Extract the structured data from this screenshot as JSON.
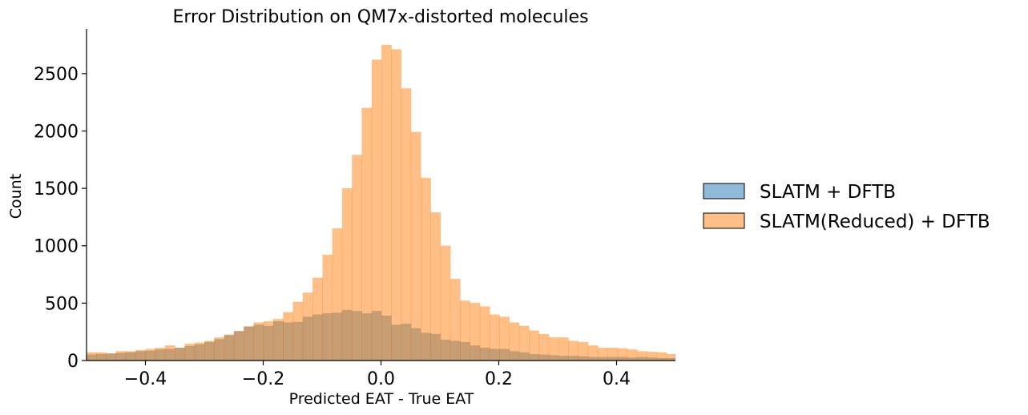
{
  "chart_data": {
    "type": "bar",
    "title": "Error Distribution on QM7x-distorted molecules",
    "xlabel": "Predicted EAT - True EAT",
    "ylabel": "Count",
    "xlim": [
      -0.5,
      0.5
    ],
    "ylim": [
      0,
      2890
    ],
    "xticks": [
      -0.4,
      -0.2,
      0.0,
      0.2,
      0.4
    ],
    "xtick_labels": [
      "−0.4",
      "−0.2",
      "0.0",
      "0.2",
      "0.4"
    ],
    "yticks": [
      0,
      500,
      1000,
      1500,
      2000,
      2500
    ],
    "ytick_labels": [
      "0",
      "500",
      "1000",
      "1500",
      "2000",
      "2500"
    ],
    "grid": false,
    "legend_position": "right",
    "bin_edges_start": -0.5,
    "bin_width": 0.0167,
    "series": [
      {
        "name": "SLATM + DFTB",
        "color": "#1f77b4",
        "alpha": 0.5,
        "values": [
          50,
          55,
          60,
          65,
          70,
          80,
          85,
          95,
          100,
          110,
          125,
          140,
          160,
          185,
          220,
          255,
          295,
          310,
          300,
          340,
          330,
          335,
          380,
          400,
          410,
          415,
          440,
          430,
          410,
          430,
          390,
          310,
          320,
          280,
          240,
          230,
          180,
          170,
          160,
          130,
          110,
          100,
          100,
          80,
          70,
          55,
          50,
          45,
          40,
          40,
          35,
          30,
          30,
          30,
          30,
          25,
          30,
          25,
          20,
          20
        ]
      },
      {
        "name": "SLATM(Reduced) + DFTB",
        "color": "#ff7f0e",
        "alpha": 0.5,
        "values": [
          70,
          70,
          60,
          80,
          80,
          90,
          100,
          110,
          130,
          110,
          145,
          155,
          170,
          200,
          225,
          255,
          295,
          330,
          340,
          360,
          420,
          510,
          590,
          720,
          920,
          1150,
          1500,
          1790,
          2200,
          2620,
          2750,
          2710,
          2370,
          1990,
          1590,
          1290,
          1000,
          710,
          520,
          500,
          470,
          400,
          380,
          330,
          300,
          260,
          230,
          200,
          200,
          170,
          160,
          130,
          110,
          110,
          105,
          95,
          80,
          75,
          70,
          55
        ]
      }
    ]
  }
}
